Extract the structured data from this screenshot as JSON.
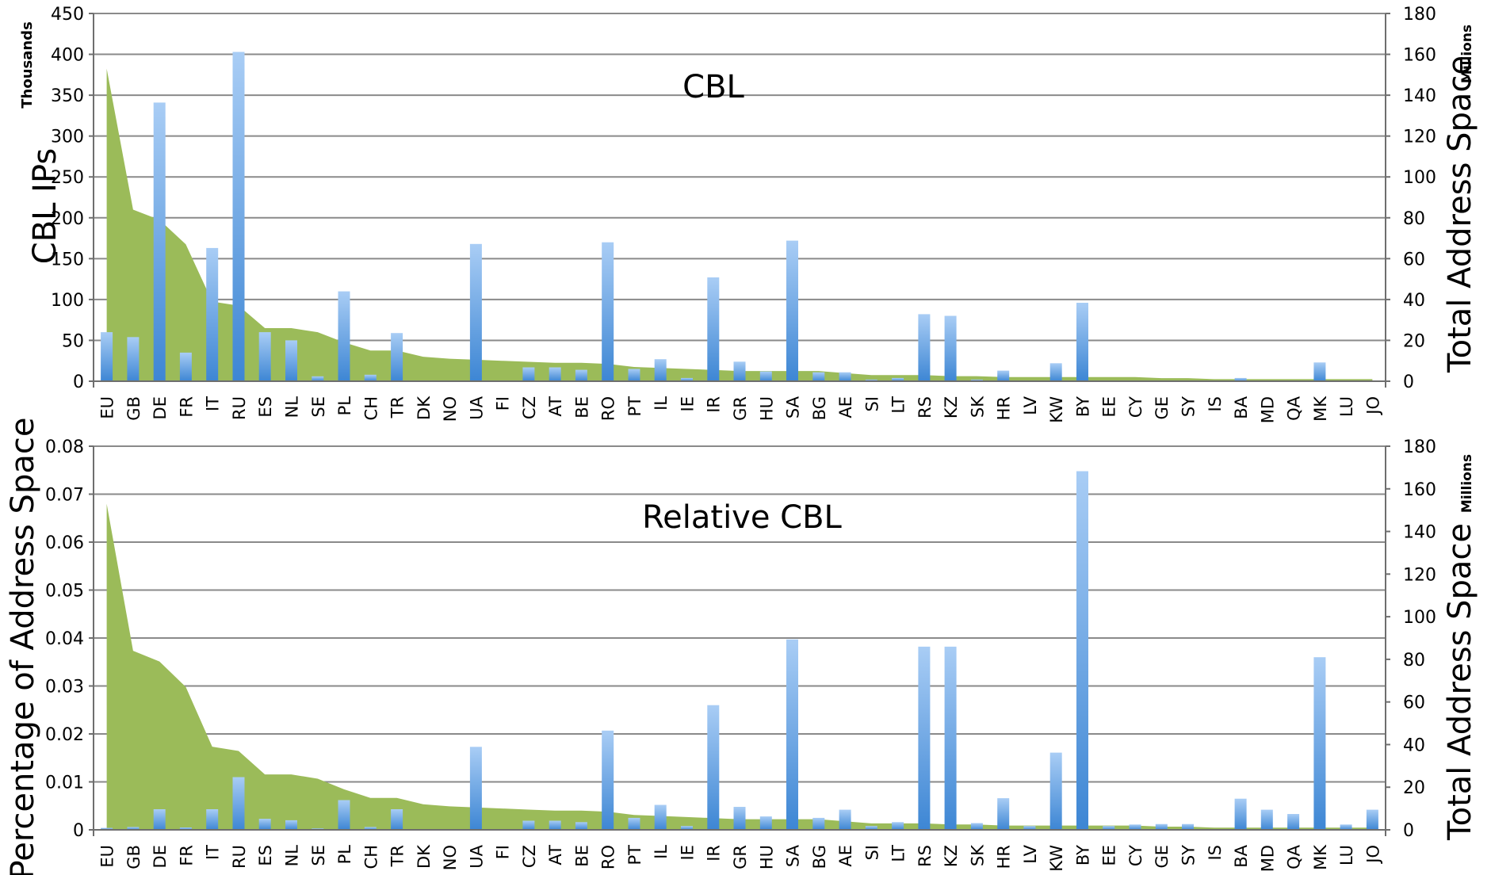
{
  "chart_data": [
    {
      "type": "bar",
      "title": "CBL",
      "ylabel": "CBL IPs",
      "ylabel_unit": "Thousands",
      "y2label": "Total Address Space",
      "y2label_unit": "Millions",
      "ylim": [
        0,
        450
      ],
      "yticks": [
        "0",
        "50",
        "100",
        "150",
        "200",
        "250",
        "300",
        "350",
        "400",
        "450"
      ],
      "y2lim": [
        0,
        180
      ],
      "y2ticks": [
        "0",
        "20",
        "40",
        "60",
        "80",
        "100",
        "120",
        "140",
        "160",
        "180"
      ],
      "grid": true,
      "categories": [
        "EU",
        "GB",
        "DE",
        "FR",
        "IT",
        "RU",
        "ES",
        "NL",
        "SE",
        "PL",
        "CH",
        "TR",
        "DK",
        "NO",
        "UA",
        "FI",
        "CZ",
        "AT",
        "BE",
        "RO",
        "PT",
        "IL",
        "IE",
        "IR",
        "GR",
        "HU",
        "SA",
        "BG",
        "AE",
        "SI",
        "LT",
        "RS",
        "KZ",
        "SK",
        "HR",
        "LV",
        "KW",
        "BY",
        "EE",
        "CY",
        "GE",
        "SY",
        "IS",
        "BA",
        "MD",
        "QA",
        "MK",
        "LU",
        "JO"
      ],
      "series": [
        {
          "kind": "bar",
          "axis": "left",
          "color": "#5b9bd5",
          "values": [
            60,
            54,
            341,
            35,
            163,
            403,
            60,
            50,
            6,
            110,
            8,
            59,
            0,
            0,
            168,
            0,
            17,
            17,
            14,
            170,
            15,
            27,
            4,
            127,
            24,
            12,
            172,
            11,
            11,
            2,
            4,
            82,
            80,
            2,
            13,
            1,
            22,
            96,
            1,
            1,
            1,
            1,
            1,
            4,
            1,
            1,
            23,
            1,
            1
          ]
        },
        {
          "kind": "area",
          "axis": "right",
          "color": "#9bbb59",
          "values": [
            153,
            84,
            79,
            67,
            39,
            37,
            26,
            26,
            24,
            19,
            15,
            15,
            12,
            11,
            10.5,
            10,
            9.5,
            9,
            9,
            8.5,
            7,
            6.5,
            6,
            5.5,
            5,
            5,
            5,
            5,
            4,
            3,
            3,
            3,
            2.5,
            2.5,
            2,
            2,
            2,
            2,
            2,
            2,
            1.5,
            1.5,
            1,
            1,
            1,
            1,
            1,
            1,
            1
          ]
        }
      ]
    },
    {
      "type": "bar",
      "title": "Relative CBL",
      "ylabel": "Percentage of Address Space",
      "y2label": "Total Address Space",
      "y2label_unit": "Millions",
      "ylim": [
        0,
        0.08
      ],
      "yticks": [
        "0",
        "0.01",
        "0.02",
        "0.03",
        "0.04",
        "0.05",
        "0.06",
        "0.07",
        "0.08"
      ],
      "y2lim": [
        0,
        180
      ],
      "y2ticks": [
        "0",
        "20",
        "40",
        "60",
        "80",
        "100",
        "120",
        "140",
        "160",
        "180"
      ],
      "grid": true,
      "categories": [
        "EU",
        "GB",
        "DE",
        "FR",
        "IT",
        "RU",
        "ES",
        "NL",
        "SE",
        "PL",
        "CH",
        "TR",
        "DK",
        "NO",
        "UA",
        "FI",
        "CZ",
        "AT",
        "BE",
        "RO",
        "PT",
        "IL",
        "IE",
        "IR",
        "GR",
        "HU",
        "SA",
        "BG",
        "AE",
        "SI",
        "LT",
        "RS",
        "KZ",
        "SK",
        "HR",
        "LV",
        "KW",
        "BY",
        "EE",
        "CY",
        "GE",
        "SY",
        "IS",
        "BA",
        "MD",
        "QA",
        "MK",
        "LU",
        "JO"
      ],
      "series": [
        {
          "kind": "bar",
          "axis": "left",
          "color": "#5b9bd5",
          "values": [
            0.0004,
            0.0006,
            0.0043,
            0.0005,
            0.0043,
            0.011,
            0.0023,
            0.002,
            0.0003,
            0.0062,
            0.0006,
            0.0043,
            0,
            0,
            0.0173,
            0,
            0.0019,
            0.0019,
            0.0016,
            0.0207,
            0.0025,
            0.0052,
            0.0008,
            0.026,
            0.0048,
            0.0028,
            0.0397,
            0.0025,
            0.0042,
            0.0008,
            0.0016,
            0.0382,
            0.0382,
            0.0014,
            0.0066,
            0.0008,
            0.0161,
            0.0748,
            0.0008,
            0.0011,
            0.0012,
            0.0012,
            0,
            0.0065,
            0.0042,
            0.0033,
            0.036,
            0.0011,
            0.0042
          ]
        },
        {
          "kind": "area",
          "axis": "right",
          "color": "#9bbb59",
          "values": [
            153,
            84,
            79,
            67,
            39,
            37,
            26,
            26,
            24,
            19,
            15,
            15,
            12,
            11,
            10.5,
            10,
            9.5,
            9,
            9,
            8.5,
            7,
            6.5,
            6,
            5.5,
            5,
            5,
            5,
            5,
            4,
            3,
            3,
            3,
            2.5,
            2.5,
            2,
            2,
            2,
            2,
            2,
            2,
            1.5,
            1.5,
            1,
            1,
            1,
            1,
            1,
            1,
            1
          ]
        }
      ]
    }
  ]
}
